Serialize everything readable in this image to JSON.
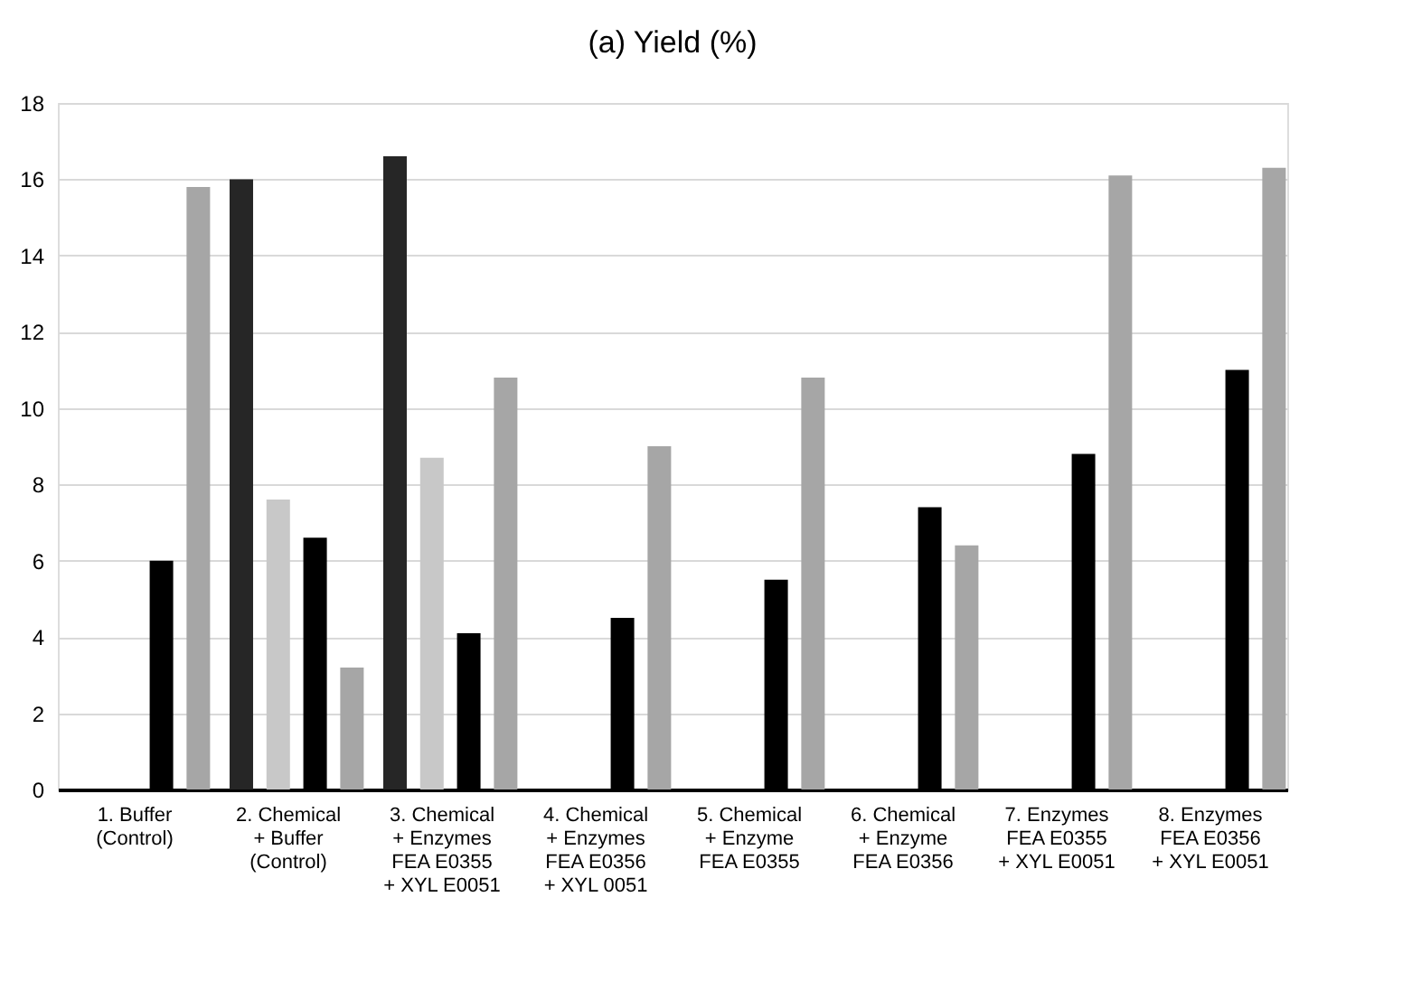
{
  "chart_data": {
    "type": "bar",
    "title": "(a) Yield (%)",
    "categories": [
      "1. Buffer\n(Control)",
      "2. Chemical\n+ Buffer\n(Control)",
      "3. Chemical\n+ Enzymes\nFEA E0355\n+ XYL E0051",
      "4. Chemical\n+ Enzymes\nFEA E0356\n+ XYL 0051",
      "5. Chemical\n+ Enzyme\nFEA E0355",
      "6. Chemical\n+ Enzyme\nFEA E0356",
      "7. Enzymes\nFEA E0355\n+ XYL E0051",
      "8. Enzymes\nFEA E0356\n+ XYL E0051"
    ],
    "series": [
      {
        "color": "#262626",
        "values": [
          null,
          16.0,
          16.6,
          null,
          null,
          null,
          null,
          null
        ]
      },
      {
        "color": "#c8c8c8",
        "values": [
          null,
          7.6,
          8.7,
          null,
          null,
          null,
          null,
          null
        ]
      },
      {
        "color": "#000000",
        "values": [
          6.0,
          6.6,
          4.1,
          4.5,
          5.5,
          7.4,
          8.8,
          11.0
        ]
      },
      {
        "color": "#a6a6a6",
        "values": [
          15.8,
          3.2,
          10.8,
          9.0,
          10.8,
          6.4,
          16.1,
          16.3
        ]
      }
    ],
    "ylim": [
      0,
      18
    ],
    "yticks": [
      0,
      2,
      4,
      6,
      8,
      10,
      12,
      14,
      16,
      18
    ],
    "grid": "y",
    "legend": false
  }
}
